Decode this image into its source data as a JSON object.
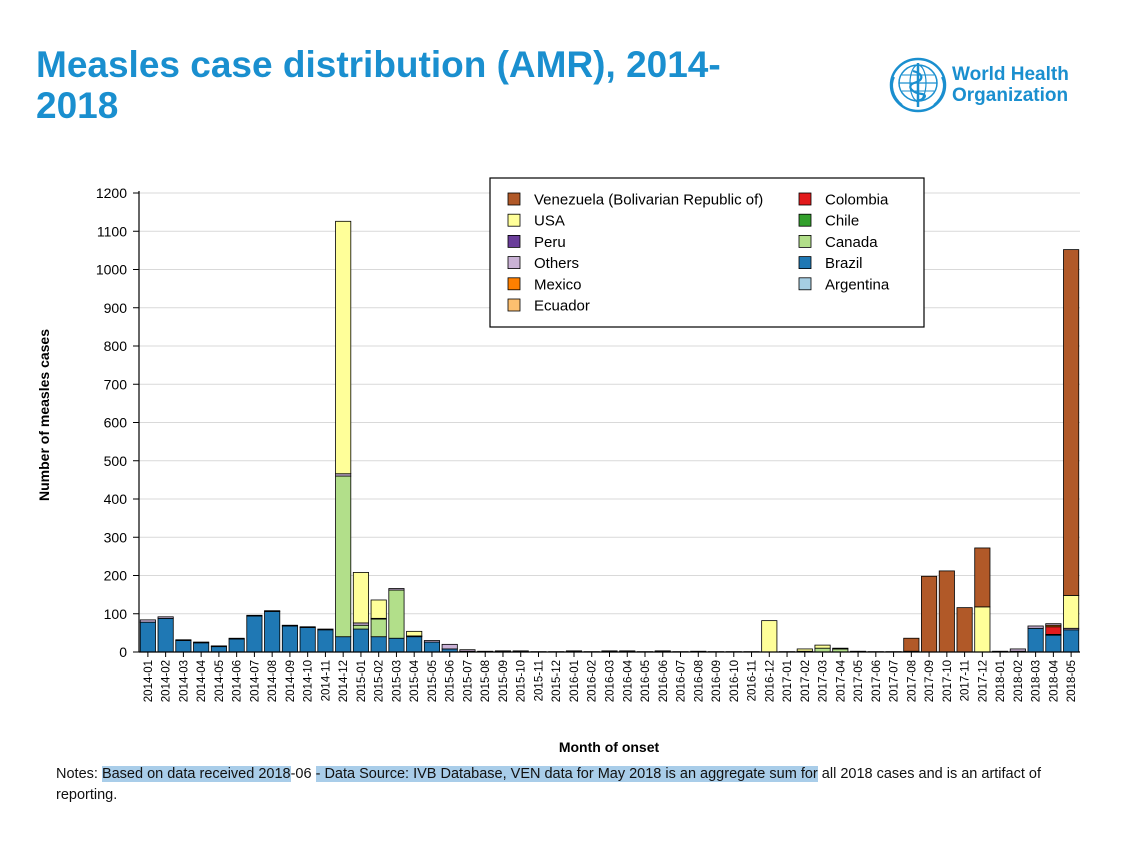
{
  "header": {
    "title": "Measles case distribution (AMR), 2014-2018",
    "logo_line1": "World Health",
    "logo_line2": "Organization",
    "brand_color": "#1a8fcf"
  },
  "notes": {
    "part1": "Notes: ",
    "part2": "Based on data received 2018",
    "part3": "-06 ",
    "part4": "- ",
    "part5": "Data Source: IVB Database",
    "part6": ", VEN data for May 2018 is an aggregate sum for",
    "part7": " all 2018 cases and is an artifact of reporting."
  },
  "chart_data": {
    "type": "bar",
    "stacked": true,
    "xlabel": "Month of onset",
    "ylabel": "Number of measles cases",
    "ylim": [
      0,
      1200
    ],
    "yticks": [
      0,
      100,
      200,
      300,
      400,
      500,
      600,
      700,
      800,
      900,
      1000,
      1100,
      1200
    ],
    "grid": "horizontal",
    "legend_position": "top-right",
    "categories": [
      "2014-01",
      "2014-02",
      "2014-03",
      "2014-04",
      "2014-05",
      "2014-06",
      "2014-07",
      "2014-08",
      "2014-09",
      "2014-10",
      "2014-11",
      "2014-12",
      "2015-01",
      "2015-02",
      "2015-03",
      "2015-04",
      "2015-05",
      "2015-06",
      "2015-07",
      "2015-08",
      "2015-09",
      "2015-10",
      "2015-11",
      "2015-12",
      "2016-01",
      "2016-02",
      "2016-03",
      "2016-04",
      "2016-05",
      "2016-06",
      "2016-07",
      "2016-08",
      "2016-09",
      "2016-10",
      "2016-11",
      "2016-12",
      "2017-01",
      "2017-02",
      "2017-03",
      "2017-04",
      "2017-05",
      "2017-06",
      "2017-07",
      "2017-08",
      "2017-09",
      "2017-10",
      "2017-11",
      "2017-12",
      "2018-01",
      "2018-02",
      "2018-03",
      "2018-04",
      "2018-05"
    ],
    "series": [
      {
        "name": "Argentina",
        "color": "#a6cee3",
        "values": [
          0,
          0,
          0,
          0,
          0,
          0,
          0,
          0,
          0,
          0,
          0,
          0,
          0,
          0,
          0,
          0,
          0,
          0,
          0,
          0,
          0,
          0,
          0,
          0,
          0,
          0,
          0,
          0,
          0,
          0,
          0,
          0,
          0,
          0,
          0,
          0,
          0,
          0,
          0,
          0,
          0,
          0,
          0,
          0,
          0,
          0,
          0,
          0,
          0,
          0,
          0,
          0,
          0
        ]
      },
      {
        "name": "Brazil",
        "color": "#1f78b4",
        "values": [
          78,
          88,
          30,
          24,
          14,
          34,
          94,
          106,
          68,
          64,
          58,
          40,
          60,
          40,
          36,
          40,
          26,
          8,
          2,
          2,
          1,
          1,
          0,
          0,
          2,
          0,
          1,
          1,
          0,
          1,
          0,
          0,
          0,
          0,
          0,
          0,
          0,
          0,
          0,
          0,
          0,
          0,
          0,
          0,
          0,
          0,
          0,
          0,
          0,
          2,
          62,
          44,
          58
        ]
      },
      {
        "name": "Canada",
        "color": "#b2df8a",
        "values": [
          0,
          0,
          0,
          0,
          0,
          0,
          0,
          0,
          0,
          0,
          0,
          420,
          10,
          46,
          126,
          0,
          0,
          0,
          0,
          0,
          0,
          0,
          0,
          0,
          0,
          0,
          0,
          0,
          0,
          0,
          0,
          0,
          0,
          0,
          0,
          0,
          0,
          0,
          10,
          8,
          0,
          0,
          0,
          0,
          0,
          0,
          0,
          0,
          0,
          0,
          0,
          2,
          0
        ]
      },
      {
        "name": "Chile",
        "color": "#33a02c",
        "values": [
          0,
          0,
          0,
          0,
          0,
          0,
          0,
          0,
          0,
          0,
          0,
          0,
          0,
          0,
          0,
          0,
          0,
          0,
          0,
          0,
          0,
          0,
          0,
          0,
          0,
          0,
          0,
          0,
          0,
          0,
          0,
          0,
          0,
          0,
          0,
          0,
          0,
          0,
          0,
          0,
          0,
          0,
          0,
          0,
          0,
          0,
          0,
          0,
          0,
          0,
          0,
          0,
          0
        ]
      },
      {
        "name": "Colombia",
        "color": "#e31a1c",
        "values": [
          0,
          0,
          0,
          0,
          0,
          0,
          0,
          0,
          0,
          0,
          0,
          0,
          0,
          0,
          0,
          0,
          0,
          0,
          0,
          0,
          0,
          0,
          0,
          0,
          0,
          0,
          0,
          0,
          0,
          0,
          0,
          0,
          0,
          0,
          0,
          0,
          0,
          0,
          0,
          0,
          0,
          0,
          0,
          0,
          0,
          0,
          0,
          0,
          0,
          0,
          0,
          20,
          0
        ]
      },
      {
        "name": "Ecuador",
        "color": "#fdbf6f",
        "values": [
          0,
          0,
          0,
          0,
          0,
          0,
          0,
          0,
          0,
          0,
          0,
          0,
          0,
          0,
          0,
          0,
          0,
          0,
          0,
          0,
          0,
          0,
          0,
          0,
          0,
          0,
          0,
          0,
          0,
          0,
          0,
          0,
          0,
          0,
          0,
          0,
          0,
          0,
          0,
          0,
          0,
          0,
          0,
          0,
          0,
          0,
          0,
          0,
          0,
          0,
          0,
          0,
          0
        ]
      },
      {
        "name": "Mexico",
        "color": "#ff7f00",
        "values": [
          0,
          0,
          0,
          0,
          0,
          0,
          0,
          0,
          0,
          0,
          0,
          0,
          0,
          0,
          0,
          0,
          0,
          0,
          0,
          0,
          0,
          0,
          0,
          0,
          0,
          0,
          0,
          0,
          0,
          0,
          0,
          0,
          0,
          0,
          0,
          0,
          0,
          0,
          0,
          0,
          0,
          0,
          0,
          0,
          0,
          0,
          0,
          0,
          0,
          0,
          0,
          4,
          0
        ]
      },
      {
        "name": "Others",
        "color": "#cab2d6",
        "values": [
          6,
          4,
          2,
          2,
          2,
          2,
          2,
          2,
          2,
          2,
          2,
          6,
          6,
          2,
          4,
          2,
          4,
          12,
          4,
          0,
          2,
          2,
          1,
          1,
          1,
          1,
          2,
          2,
          1,
          2,
          1,
          2,
          1,
          1,
          1,
          0,
          1,
          2,
          0,
          2,
          2,
          1,
          1,
          2,
          0,
          0,
          0,
          0,
          2,
          6,
          6,
          4,
          4
        ]
      },
      {
        "name": "Peru",
        "color": "#6a3d9a",
        "values": [
          0,
          0,
          0,
          0,
          0,
          0,
          0,
          0,
          0,
          0,
          0,
          0,
          0,
          0,
          0,
          0,
          0,
          0,
          0,
          0,
          0,
          0,
          0,
          0,
          0,
          0,
          0,
          0,
          0,
          0,
          0,
          0,
          0,
          0,
          0,
          0,
          0,
          0,
          0,
          0,
          0,
          0,
          0,
          0,
          0,
          0,
          0,
          0,
          0,
          0,
          0,
          0,
          0
        ]
      },
      {
        "name": "USA",
        "color": "#ffff99",
        "values": [
          0,
          0,
          0,
          0,
          0,
          0,
          0,
          0,
          0,
          0,
          0,
          660,
          132,
          48,
          0,
          12,
          0,
          0,
          0,
          0,
          0,
          0,
          0,
          0,
          0,
          0,
          0,
          0,
          0,
          0,
          0,
          0,
          0,
          0,
          0,
          82,
          0,
          6,
          8,
          0,
          0,
          0,
          0,
          0,
          0,
          0,
          0,
          118,
          0,
          0,
          0,
          0,
          86
        ]
      },
      {
        "name": "Venezuela (Bolivarian Republic of)",
        "color": "#b15928",
        "values": [
          0,
          0,
          0,
          0,
          0,
          0,
          0,
          0,
          0,
          0,
          0,
          0,
          0,
          0,
          0,
          0,
          0,
          0,
          0,
          0,
          0,
          0,
          0,
          0,
          0,
          0,
          0,
          0,
          0,
          0,
          0,
          0,
          0,
          0,
          0,
          0,
          0,
          0,
          0,
          0,
          0,
          0,
          0,
          34,
          198,
          212,
          116,
          154,
          0,
          0,
          0,
          0,
          904
        ]
      }
    ],
    "legend_col1": [
      "Venezuela (Bolivarian Republic of)",
      "USA",
      "Peru",
      "Others",
      "Mexico",
      "Ecuador"
    ],
    "legend_col2": [
      "Colombia",
      "Chile",
      "Canada",
      "Brazil",
      "Argentina"
    ]
  }
}
